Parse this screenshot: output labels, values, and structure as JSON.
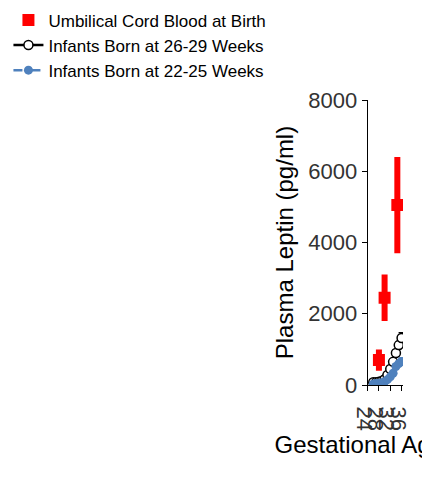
{
  "chart_data": {
    "type": "line",
    "x_label": "Gestational Age (wk)",
    "y_label": "Plasma Leptin (pg/ml)",
    "xlim": [
      24,
      36.5
    ],
    "xticks": [
      24,
      28,
      32,
      36
    ],
    "ylim": [
      0,
      8000
    ],
    "yticks": [
      0,
      2000,
      4000,
      6000,
      8000
    ],
    "grid": false,
    "legend": "top left",
    "series": [
      {
        "name": "Umbilical Cord Blood at Birth",
        "type": "scatter",
        "color": "#ff0000",
        "marker": "square",
        "line_style": "none",
        "x": [
          28,
          30,
          34.5
        ],
        "values": [
          700,
          2450,
          5050
        ],
        "error": [
          300,
          650,
          1350
        ]
      },
      {
        "name": "Infants Born at 26-29 Weeks",
        "type": "line",
        "color": "#000000",
        "marker": "circle-open",
        "line_style": "solid",
        "x": [
          26,
          27,
          28,
          29,
          30,
          31,
          32,
          33,
          34,
          35,
          36
        ],
        "values": [
          80,
          80,
          90,
          110,
          160,
          280,
          450,
          650,
          900,
          1120,
          1320
        ],
        "error": [
          20,
          20,
          20,
          20,
          30,
          40,
          50,
          60,
          80,
          100,
          150
        ]
      },
      {
        "name": "Infants Born at 22-25 Weeks",
        "type": "line",
        "color": "#4f81bd",
        "marker": "circle",
        "line_style": "dashed",
        "x": [
          26,
          27,
          28,
          29,
          30,
          31,
          32,
          33,
          34,
          35,
          36
        ],
        "values": [
          30,
          40,
          50,
          60,
          90,
          150,
          230,
          330,
          520,
          600,
          660
        ],
        "error": [
          10,
          10,
          10,
          10,
          20,
          30,
          40,
          50,
          60,
          70,
          100
        ]
      }
    ]
  }
}
